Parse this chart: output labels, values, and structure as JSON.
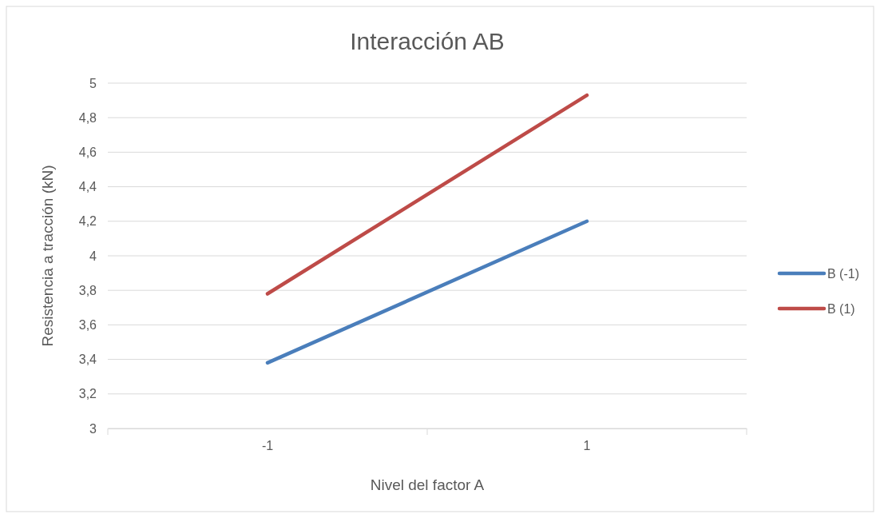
{
  "chart_data": {
    "type": "line",
    "title": "Interacción AB",
    "xlabel": "Nivel del factor A",
    "ylabel": "Resistencia  a tracción (kN)",
    "categories": [
      "-1",
      "1"
    ],
    "series": [
      {
        "name": "B (-1)",
        "color": "#4a7ebb",
        "values": [
          3.38,
          4.2
        ]
      },
      {
        "name": "B (1)",
        "color": "#be4b48",
        "values": [
          3.78,
          4.93
        ]
      }
    ],
    "ylim": [
      3,
      5
    ],
    "yticks": [
      {
        "value": 3,
        "label": "3"
      },
      {
        "value": 3.2,
        "label": "3,2"
      },
      {
        "value": 3.4,
        "label": "3,4"
      },
      {
        "value": 3.6,
        "label": "3,6"
      },
      {
        "value": 3.8,
        "label": "3,8"
      },
      {
        "value": 4,
        "label": "4"
      },
      {
        "value": 4.2,
        "label": "4,2"
      },
      {
        "value": 4.4,
        "label": "4,4"
      },
      {
        "value": 4.6,
        "label": "4,6"
      },
      {
        "value": 4.8,
        "label": "4,8"
      },
      {
        "value": 5,
        "label": "5"
      }
    ],
    "grid": "y",
    "legend": "right",
    "marker": "none",
    "line_style": "solid"
  }
}
